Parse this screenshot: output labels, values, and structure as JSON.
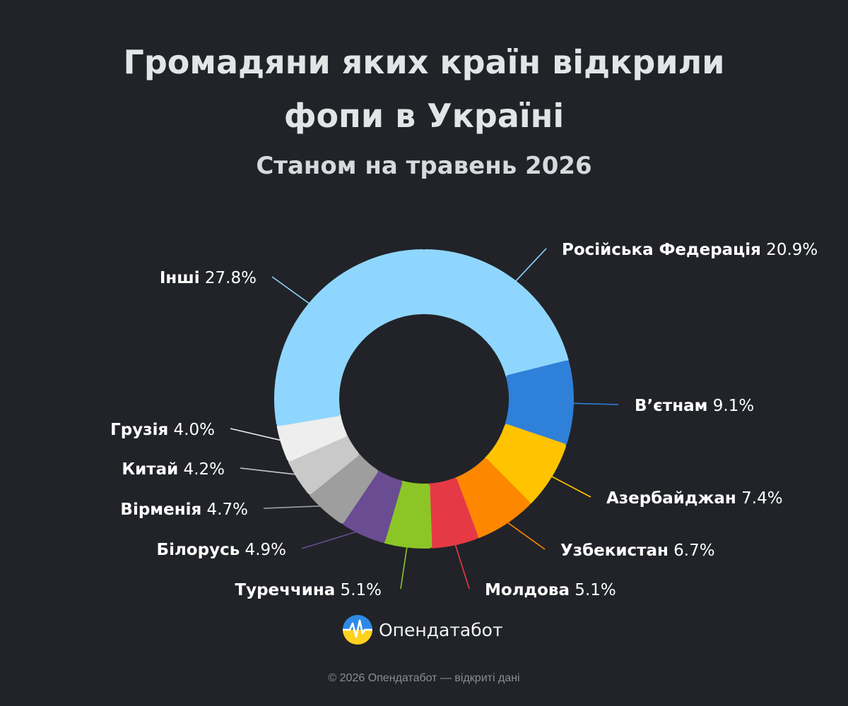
{
  "header": {
    "title_line1": "Громадяни яких країн відкрили",
    "title_line2": "фопи в Україні",
    "subtitle": "Станом на травень 2026"
  },
  "chart_data": {
    "type": "pie",
    "variant": "donut",
    "title": "Громадяни яких країн відкрили фопи в Україні",
    "subtitle": "Станом на травень 2026",
    "unit": "%",
    "slices": [
      {
        "label": "Російська Федерація",
        "value": 20.9,
        "color": "#8fd6fe"
      },
      {
        "label": "В’єтнам",
        "value": 9.1,
        "color": "#2f80d9"
      },
      {
        "label": "Азербайджан",
        "value": 7.4,
        "color": "#ffc300"
      },
      {
        "label": "Узбекистан",
        "value": 6.7,
        "color": "#fd8800"
      },
      {
        "label": "Молдова",
        "value": 5.1,
        "color": "#e63946"
      },
      {
        "label": "Туреччина",
        "value": 5.1,
        "color": "#8cc626"
      },
      {
        "label": "Білорусь",
        "value": 4.9,
        "color": "#6a4c93"
      },
      {
        "label": "Вірменія",
        "value": 4.7,
        "color": "#9e9e9e"
      },
      {
        "label": "Китай",
        "value": 4.2,
        "color": "#c9c9c9"
      },
      {
        "label": "Грузія",
        "value": 4.0,
        "color": "#eeeeee"
      },
      {
        "label": "Інші",
        "value": 27.8,
        "color": "#8fd6fe"
      }
    ]
  },
  "branding": {
    "logo_text": "Опендатабот",
    "logo_icon": "opendatabot-logo-icon",
    "footer": "© 2026 Опендатабот — відкриті дані"
  }
}
